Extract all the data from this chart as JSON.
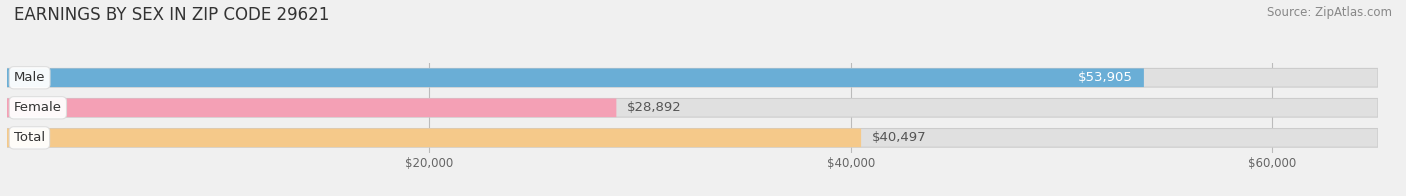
{
  "title": "EARNINGS BY SEX IN ZIP CODE 29621",
  "source": "Source: ZipAtlas.com",
  "categories": [
    "Male",
    "Female",
    "Total"
  ],
  "values": [
    53905,
    28892,
    40497
  ],
  "bar_colors": [
    "#6aaed6",
    "#f4a0b5",
    "#f5c98a"
  ],
  "value_labels": [
    "$53,905",
    "$28,892",
    "$40,497"
  ],
  "label_inside": [
    true,
    false,
    false
  ],
  "label_text_colors": [
    "white",
    "#555555",
    "#555555"
  ],
  "xlim_max": 65000,
  "xticks": [
    20000,
    40000,
    60000
  ],
  "xtick_labels": [
    "$20,000",
    "$40,000",
    "$60,000"
  ],
  "bar_height": 0.62,
  "bg_color": "#f0f0f0",
  "bar_bg_color": "#e0e0e0",
  "bar_bg_border": "#d0d0d0",
  "title_fontsize": 12,
  "source_fontsize": 8.5,
  "label_fontsize": 9.5,
  "category_fontsize": 9.5
}
